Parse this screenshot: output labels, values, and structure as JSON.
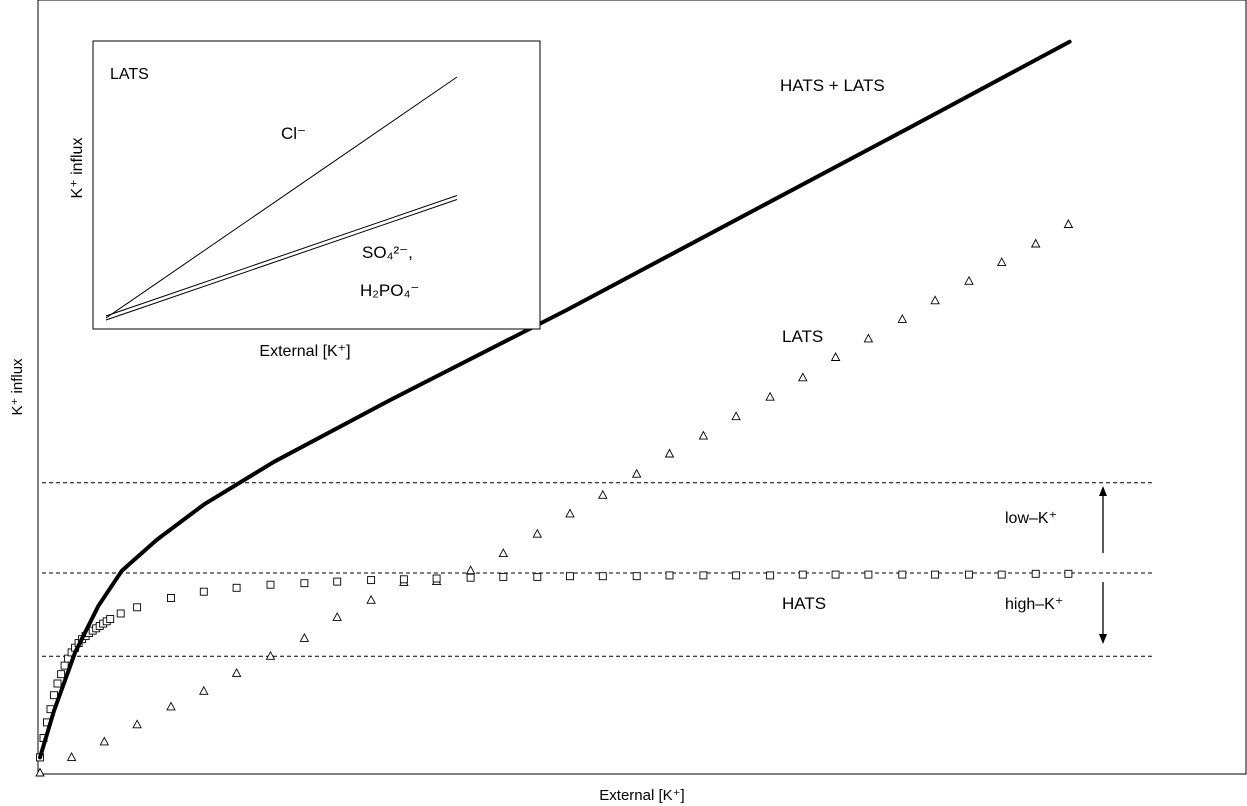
{
  "chart_data": {
    "type": "scatter",
    "xlabel": "External [K⁺]",
    "ylabel": "K⁺ influx",
    "xlim": [
      0,
      1
    ],
    "ylim": [
      0,
      1
    ],
    "grid": false,
    "series": [
      {
        "name": "HATS + LATS",
        "kind": "line",
        "color": "#000000",
        "x": [
          0.0,
          0.012,
          0.03,
          0.05,
          0.07,
          0.1,
          0.14,
          0.2,
          0.3,
          0.45,
          0.6,
          0.75,
          0.88
        ],
        "y": [
          0.02,
          0.08,
          0.155,
          0.215,
          0.26,
          0.3,
          0.345,
          0.4,
          0.48,
          0.595,
          0.715,
          0.835,
          0.94
        ]
      },
      {
        "name": "HATS",
        "kind": "points",
        "marker": "square",
        "x": [
          0.0,
          0.003,
          0.006,
          0.009,
          0.012,
          0.015,
          0.018,
          0.021,
          0.024,
          0.027,
          0.03,
          0.033,
          0.036,
          0.039,
          0.042,
          0.045,
          0.048,
          0.051,
          0.054,
          0.057,
          0.06,
          0.069,
          0.083,
          0.112,
          0.14,
          0.168,
          0.197,
          0.226,
          0.254,
          0.283,
          0.311,
          0.339,
          0.368,
          0.396,
          0.425,
          0.453,
          0.481,
          0.51,
          0.538,
          0.567,
          0.595,
          0.624,
          0.652,
          0.68,
          0.708,
          0.737,
          0.765,
          0.794,
          0.822,
          0.851,
          0.879
        ],
        "y": [
          0.02,
          0.045,
          0.065,
          0.082,
          0.1,
          0.115,
          0.127,
          0.138,
          0.147,
          0.155,
          0.161,
          0.167,
          0.172,
          0.176,
          0.18,
          0.183,
          0.186,
          0.189,
          0.192,
          0.195,
          0.198,
          0.205,
          0.213,
          0.225,
          0.233,
          0.238,
          0.242,
          0.244,
          0.246,
          0.248,
          0.249,
          0.25,
          0.251,
          0.252,
          0.252,
          0.253,
          0.253,
          0.253,
          0.254,
          0.254,
          0.254,
          0.254,
          0.255,
          0.255,
          0.255,
          0.255,
          0.255,
          0.255,
          0.255,
          0.256,
          0.256
        ]
      },
      {
        "name": "LATS",
        "kind": "points",
        "marker": "triangle",
        "x": [
          0.0,
          0.027,
          0.055,
          0.083,
          0.112,
          0.14,
          0.168,
          0.197,
          0.226,
          0.254,
          0.283,
          0.311,
          0.339,
          0.368,
          0.396,
          0.425,
          0.453,
          0.481,
          0.51,
          0.538,
          0.567,
          0.595,
          0.624,
          0.652,
          0.68,
          0.708,
          0.737,
          0.765,
          0.794,
          0.822,
          0.851,
          0.879
        ],
        "y": [
          0.0,
          0.02,
          0.04,
          0.062,
          0.085,
          0.105,
          0.128,
          0.15,
          0.173,
          0.2,
          0.222,
          0.245,
          0.246,
          0.26,
          0.282,
          0.307,
          0.333,
          0.357,
          0.384,
          0.41,
          0.433,
          0.458,
          0.483,
          0.508,
          0.534,
          0.558,
          0.583,
          0.607,
          0.632,
          0.656,
          0.68,
          0.705
        ]
      }
    ],
    "reference_lines": [
      {
        "y": 0.373
      },
      {
        "y": 0.257
      },
      {
        "y": 0.15
      }
    ],
    "annotations": [
      {
        "text": "HATS + LATS"
      },
      {
        "text": "LATS"
      },
      {
        "text": "HATS"
      },
      {
        "text": "low–K⁺"
      },
      {
        "text": "high–K⁺"
      }
    ],
    "inset": {
      "type": "line",
      "title": "LATS",
      "xlabel": "External [K⁺]",
      "ylabel": "K⁺ influx",
      "series": [
        {
          "name": "Cl⁻",
          "slope": 1.0
        },
        {
          "name": "SO4 / H2PO4",
          "slope": 0.5,
          "style": "double"
        }
      ],
      "label_cl": "Cl⁻",
      "label_so4": "SO₄²⁻,",
      "label_h2po4": "H₂PO₄⁻"
    }
  }
}
